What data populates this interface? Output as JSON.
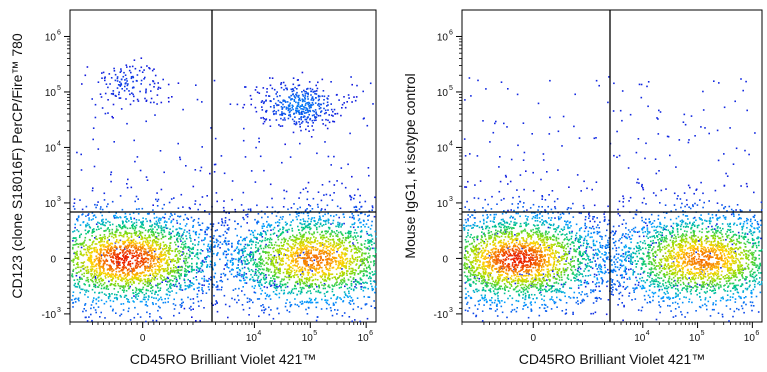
{
  "chart_data": [
    {
      "type": "scatter",
      "style": "flow-cytometry density dot plot (blue-green-yellow-red)",
      "xlabel": "CD45RO Brilliant Violet 421™",
      "ylabel": "CD123 (clone S18016F) PerCP/Fire™ 780",
      "x_scale": "biexponential",
      "y_scale": "biexponential",
      "x_ticks": [
        "0",
        "10^4",
        "10^5",
        "10^6"
      ],
      "y_ticks": [
        "-10^3",
        "0",
        "10^3",
        "10^4",
        "10^5",
        "10^6"
      ],
      "quadrant_gate": {
        "x": 1200,
        "y": 1300
      },
      "populations": [
        {
          "label": "CD45RO- CD123-",
          "x_center": -300,
          "y_center": 0,
          "relative_density": 1.0
        },
        {
          "label": "CD45RO+ CD123-",
          "x_center": 120000,
          "y_center": 0,
          "relative_density": 0.9
        },
        {
          "label": "CD45RO+ CD123 high",
          "x_center": 60000,
          "y_center": 60000,
          "relative_density": 0.15
        },
        {
          "label": "CD45RO- CD123 high",
          "x_center": -300,
          "y_center": 150000,
          "relative_density": 0.05
        }
      ]
    },
    {
      "type": "scatter",
      "style": "flow-cytometry density dot plot (blue-green-yellow-red)",
      "xlabel": "CD45RO Brilliant Violet 421™",
      "ylabel": "Mouse IgG1, κ isotype control",
      "x_scale": "biexponential",
      "y_scale": "biexponential",
      "x_ticks": [
        "0",
        "10^4",
        "10^5",
        "10^6"
      ],
      "y_ticks": [
        "-10^3",
        "0",
        "10^3",
        "10^4",
        "10^5",
        "10^6"
      ],
      "quadrant_gate": {
        "x": 1200,
        "y": 1300
      },
      "populations": [
        {
          "label": "CD45RO- isotype-",
          "x_center": -300,
          "y_center": 0,
          "relative_density": 1.0
        },
        {
          "label": "CD45RO+ isotype-",
          "x_center": 120000,
          "y_center": 0,
          "relative_density": 0.9
        }
      ]
    }
  ]
}
